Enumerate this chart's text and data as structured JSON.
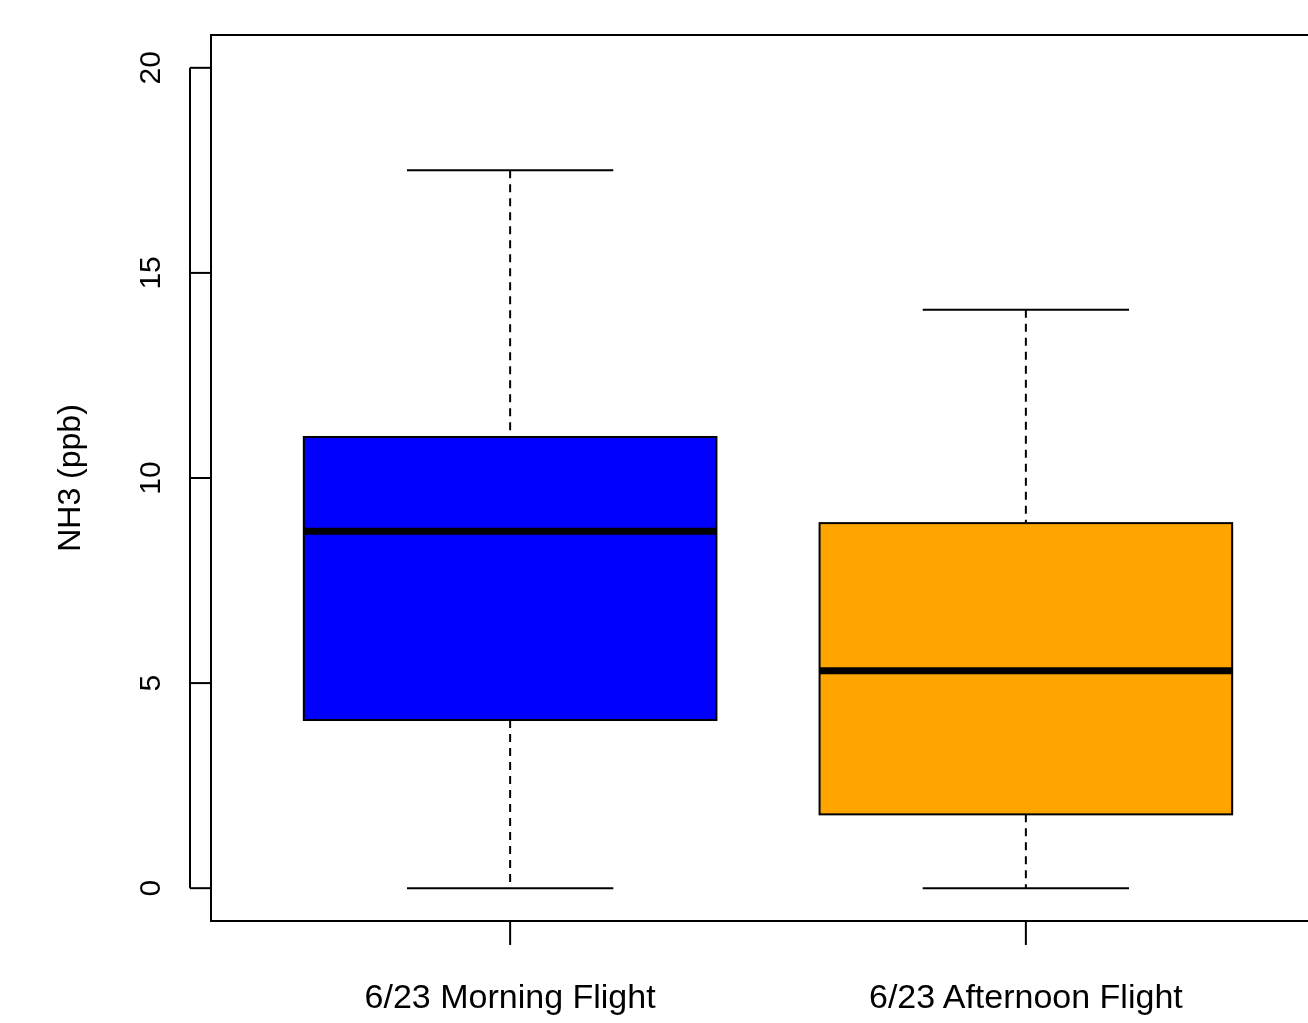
{
  "chart_data": {
    "type": "box",
    "ylabel": "NH3 (ppb)",
    "categories": [
      "6/23 Morning Flight",
      "6/23 Afternoon Flight"
    ],
    "ylim": [
      -0.8,
      20.8
    ],
    "yticks": [
      0,
      5,
      10,
      15,
      20
    ],
    "grid": false,
    "series": [
      {
        "color": "#0000ff",
        "boxes": [
          {
            "low": 0,
            "q1": 4.1,
            "median": 8.7,
            "q3": 11.0,
            "high": 17.5
          },
          null
        ]
      },
      {
        "color": "#ffa500",
        "boxes": [
          null,
          {
            "low": 0,
            "q1": 1.8,
            "median": 5.3,
            "q3": 8.9,
            "high": 14.1
          }
        ]
      }
    ]
  }
}
